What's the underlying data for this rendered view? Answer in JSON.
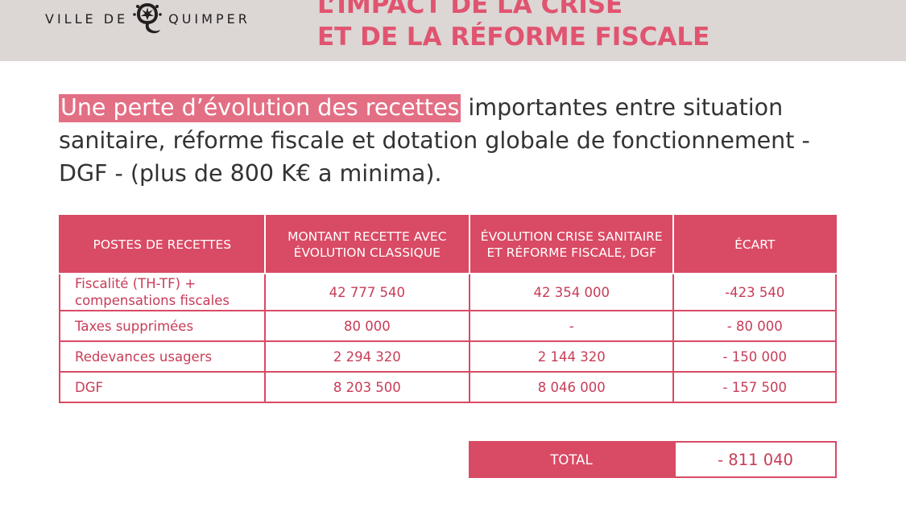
{
  "header": {
    "logo_left": "VILLE DE",
    "logo_right": "QUIMPER",
    "emblem_icon": "quimper-crest-icon",
    "title_line1": "L’IMPACT DE LA CRISE",
    "title_line2": "ET DE LA RÉFORME FISCALE"
  },
  "intro": {
    "highlight": "Une perte d’évolution des recettes",
    "rest": " importantes entre situation sanitaire, réforme fiscale et dotation globale de fonctionnement - DGF - (plus de 800 K€ a minima)."
  },
  "table": {
    "headers": [
      "POSTES DE RECETTES",
      "MONTANT RECETTE AVEC ÉVOLUTION CLASSIQUE",
      "ÉVOLUTION CRISE SANITAIRE ET RÉFORME FISCALE, DGF",
      "ÉCART"
    ],
    "rows": [
      [
        "Fiscalité (TH-TF) + compensations fiscales",
        "42 777 540",
        "42 354 000",
        "-423 540"
      ],
      [
        "Taxes supprimées",
        "80 000",
        "-",
        "- 80 000"
      ],
      [
        "Redevances usagers",
        "2 294 320",
        "2 144 320",
        "- 150 000"
      ],
      [
        "DGF",
        "8 203 500",
        "8 046 000",
        "- 157 500"
      ]
    ]
  },
  "total": {
    "label": "TOTAL",
    "value": "- 811 040"
  },
  "colors": {
    "accent": "#d94a64",
    "title": "#e05470",
    "highlight": "#e36f85",
    "header_band": "#dcd6d4"
  }
}
